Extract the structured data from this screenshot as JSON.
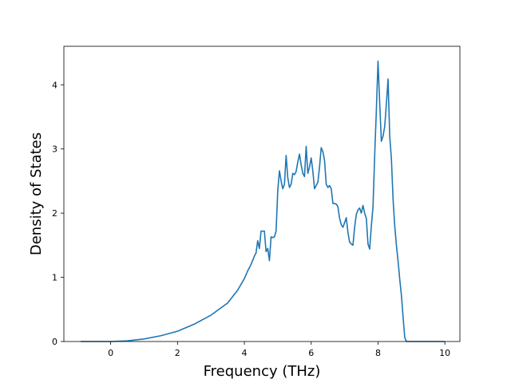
{
  "chart_data": {
    "type": "line",
    "title": "",
    "xlabel": "Frequency (THz)",
    "ylabel": "Density of States",
    "xlim": [
      -1.4,
      10.45
    ],
    "ylim": [
      0,
      4.6
    ],
    "xticks": [
      0,
      2,
      4,
      6,
      8,
      10
    ],
    "yticks": [
      0,
      1,
      2,
      3,
      4
    ],
    "grid": false,
    "line_color": "#1f77b4",
    "series": [
      {
        "x": [
          -0.9,
          -0.5,
          0.0,
          0.5,
          1.0,
          1.5,
          2.0,
          2.5,
          3.0,
          3.5,
          3.8,
          4.0,
          4.1,
          4.2,
          4.3,
          4.35,
          4.4,
          4.45,
          4.5,
          4.6,
          4.65,
          4.7,
          4.75,
          4.8,
          4.85,
          4.9,
          4.95,
          5.0,
          5.05,
          5.1,
          5.15,
          5.2,
          5.25,
          5.3,
          5.35,
          5.4,
          5.45,
          5.5,
          5.55,
          5.6,
          5.65,
          5.7,
          5.75,
          5.8,
          5.85,
          5.9,
          5.95,
          6.0,
          6.05,
          6.1,
          6.15,
          6.2,
          6.25,
          6.3,
          6.35,
          6.4,
          6.45,
          6.5,
          6.55,
          6.6,
          6.65,
          6.7,
          6.75,
          6.8,
          6.85,
          6.9,
          6.95,
          7.0,
          7.05,
          7.1,
          7.15,
          7.2,
          7.25,
          7.3,
          7.35,
          7.4,
          7.45,
          7.5,
          7.55,
          7.6,
          7.65,
          7.7,
          7.75,
          7.8,
          7.85,
          7.9,
          7.95,
          8.0,
          8.05,
          8.1,
          8.15,
          8.2,
          8.25,
          8.3,
          8.35,
          8.4,
          8.45,
          8.5,
          8.55,
          8.6,
          8.65,
          8.7,
          8.75,
          8.8,
          8.85,
          8.9,
          8.95,
          9.0,
          9.05,
          9.1,
          9.2,
          9.5,
          10.0
        ],
        "y": [
          0,
          0,
          0,
          0.01,
          0.04,
          0.09,
          0.16,
          0.27,
          0.41,
          0.6,
          0.8,
          0.98,
          1.1,
          1.2,
          1.33,
          1.38,
          1.57,
          1.45,
          1.72,
          1.72,
          1.4,
          1.45,
          1.26,
          1.63,
          1.62,
          1.63,
          1.72,
          2.35,
          2.66,
          2.5,
          2.38,
          2.45,
          2.9,
          2.55,
          2.4,
          2.45,
          2.62,
          2.6,
          2.65,
          2.8,
          2.92,
          2.75,
          2.62,
          2.57,
          3.04,
          2.62,
          2.72,
          2.86,
          2.65,
          2.38,
          2.43,
          2.48,
          2.72,
          3.02,
          2.96,
          2.82,
          2.45,
          2.4,
          2.43,
          2.38,
          2.15,
          2.15,
          2.14,
          2.1,
          1.92,
          1.82,
          1.78,
          1.85,
          1.93,
          1.7,
          1.55,
          1.52,
          1.5,
          1.78,
          1.98,
          2.05,
          2.08,
          2.0,
          2.12,
          2.0,
          1.92,
          1.52,
          1.44,
          1.8,
          2.1,
          2.9,
          3.6,
          4.37,
          3.72,
          3.12,
          3.2,
          3.35,
          3.7,
          4.09,
          3.2,
          2.85,
          2.22,
          1.8,
          1.5,
          1.25,
          0.97,
          0.72,
          0.38,
          0.06,
          0,
          0,
          0,
          0,
          0,
          0,
          0,
          0,
          0
        ]
      }
    ]
  }
}
